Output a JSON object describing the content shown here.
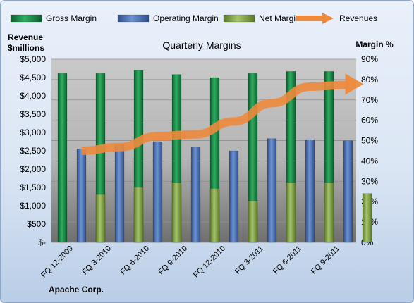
{
  "chart_data": {
    "type": "bar",
    "title": "Quarterly Margins",
    "company": "Apache Corp.",
    "left_axis_title": [
      "Revenue",
      "$millions"
    ],
    "right_axis_title": "Margin %",
    "categories": [
      "FQ 12-2009",
      "FQ 3-2010",
      "FQ 6-2010",
      "FQ 9-2010",
      "FQ 12-2010",
      "FQ 3-2011",
      "FQ 6-2011",
      "FQ 9-2011"
    ],
    "series": [
      {
        "name": "Gross Margin",
        "axis": "right",
        "kind": "bar",
        "color": "#1f8a4c",
        "values": [
          83,
          83,
          84.5,
          82.5,
          81,
          83,
          84,
          84
        ]
      },
      {
        "name": "Operating Margin",
        "axis": "right",
        "kind": "bar",
        "color": "#4f75b8",
        "values": [
          46,
          48,
          49.5,
          47,
          45,
          51,
          50.5,
          50
        ]
      },
      {
        "name": "Net Margin",
        "axis": "right",
        "kind": "bar",
        "color": "#86a850",
        "values": [
          23.5,
          27,
          29.5,
          26.5,
          20.5,
          29.5,
          29.5,
          24
        ]
      },
      {
        "name": "Revenues",
        "axis": "left",
        "kind": "line",
        "color": "#ee8a3c",
        "values": [
          2500,
          2600,
          2900,
          2950,
          3300,
          3800,
          4250,
          4300
        ]
      }
    ],
    "left_axis": {
      "ylim": [
        0,
        5000
      ],
      "ticks": [
        "$-",
        "$500",
        "$1,000",
        "$1,500",
        "$2,000",
        "$2,500",
        "$3,000",
        "$3,500",
        "$4,000",
        "$4,500",
        "$5,000"
      ]
    },
    "right_axis": {
      "ylim": [
        0,
        90
      ],
      "ticks": [
        "0%",
        "10%",
        "20%",
        "30%",
        "40%",
        "50%",
        "60%",
        "70%",
        "80%",
        "90%"
      ]
    },
    "legend_position": "top",
    "grid": true
  }
}
